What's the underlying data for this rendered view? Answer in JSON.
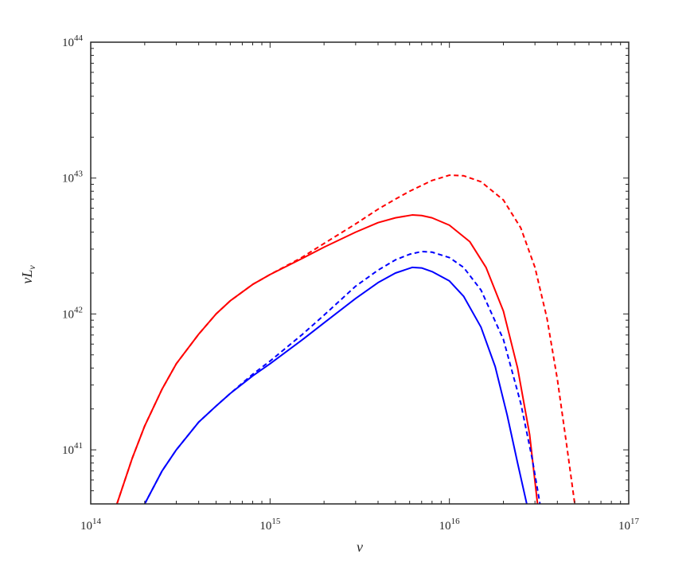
{
  "chart_data": {
    "type": "line",
    "xlabel": "ν",
    "ylabel": {
      "main": "νL",
      "sub": "ν"
    },
    "xscale": "log",
    "yscale": "log",
    "xlim": [
      100000000000000.0,
      1e+17
    ],
    "ylim": [
      4e+40,
      1e+44
    ],
    "grid": false,
    "legend": "none",
    "x_ticks": [
      {
        "base": "10",
        "exp": "14"
      },
      {
        "base": "10",
        "exp": "15"
      },
      {
        "base": "10",
        "exp": "16"
      },
      {
        "base": "10",
        "exp": "17"
      }
    ],
    "y_ticks": [
      {
        "base": "10",
        "exp": "41"
      },
      {
        "base": "10",
        "exp": "42"
      },
      {
        "base": "10",
        "exp": "43"
      },
      {
        "base": "10",
        "exp": "44"
      }
    ],
    "series": [
      {
        "color": "#ff0000",
        "style": "solid",
        "points": [
          [
            140000000000000.0,
            4e+40
          ],
          [
            170000000000000.0,
            8.6e+40
          ],
          [
            200000000000000.0,
            1.5e+41
          ],
          [
            250000000000000.0,
            2.8e+41
          ],
          [
            300000000000000.0,
            4.3e+41
          ],
          [
            400000000000000.0,
            7.1e+41
          ],
          [
            500000000000000.0,
            1e+42
          ],
          [
            600000000000000.0,
            1.25e+42
          ],
          [
            800000000000000.0,
            1.65e+42
          ],
          [
            1000000000000000.0,
            1.95e+42
          ],
          [
            1500000000000000.0,
            2.55e+42
          ],
          [
            2000000000000000.0,
            3.1e+42
          ],
          [
            3000000000000000.0,
            4e+42
          ],
          [
            4000000000000000.0,
            4.7e+42
          ],
          [
            5000000000000000.0,
            5.1e+42
          ],
          [
            6200000000000000.0,
            5.35e+42
          ],
          [
            7000000000000000.0,
            5.3e+42
          ],
          [
            8000000000000000.0,
            5.1e+42
          ],
          [
            1e+16,
            4.5e+42
          ],
          [
            1.3e+16,
            3.4e+42
          ],
          [
            1.6e+16,
            2.2e+42
          ],
          [
            2e+16,
            1.05e+42
          ],
          [
            2.4e+16,
            4e+41
          ],
          [
            2.8e+16,
            1.3e+41
          ],
          [
            3.1e+16,
            4e+40
          ]
        ]
      },
      {
        "color": "#ff0000",
        "style": "dashed",
        "points": [
          [
            140000000000000.0,
            4e+40
          ],
          [
            170000000000000.0,
            8.6e+40
          ],
          [
            200000000000000.0,
            1.5e+41
          ],
          [
            250000000000000.0,
            2.8e+41
          ],
          [
            300000000000000.0,
            4.3e+41
          ],
          [
            400000000000000.0,
            7.1e+41
          ],
          [
            500000000000000.0,
            1e+42
          ],
          [
            600000000000000.0,
            1.25e+42
          ],
          [
            800000000000000.0,
            1.65e+42
          ],
          [
            1000000000000000.0,
            1.95e+42
          ],
          [
            1500000000000000.0,
            2.6e+42
          ],
          [
            2000000000000000.0,
            3.3e+42
          ],
          [
            3000000000000000.0,
            4.6e+42
          ],
          [
            4000000000000000.0,
            5.9e+42
          ],
          [
            5000000000000000.0,
            7e+42
          ],
          [
            6000000000000000.0,
            8e+42
          ],
          [
            8000000000000000.0,
            9.6e+42
          ],
          [
            1e+16,
            1.05e+43
          ],
          [
            1.2e+16,
            1.04e+43
          ],
          [
            1.5e+16,
            9.4e+42
          ],
          [
            2e+16,
            6.9e+42
          ],
          [
            2.5e+16,
            4.3e+42
          ],
          [
            3e+16,
            2.2e+42
          ],
          [
            3.5e+16,
            9.3e+41
          ],
          [
            4e+16,
            3.3e+41
          ],
          [
            4.5e+16,
            1.1e+41
          ],
          [
            5e+16,
            4e+40
          ]
        ]
      },
      {
        "color": "#0000ff",
        "style": "solid",
        "points": [
          [
            200000000000000.0,
            4e+40
          ],
          [
            250000000000000.0,
            7e+40
          ],
          [
            300000000000000.0,
            1e+41
          ],
          [
            400000000000000.0,
            1.6e+41
          ],
          [
            500000000000000.0,
            2.1e+41
          ],
          [
            600000000000000.0,
            2.6e+41
          ],
          [
            800000000000000.0,
            3.5e+41
          ],
          [
            1000000000000000.0,
            4.3e+41
          ],
          [
            1500000000000000.0,
            6.4e+41
          ],
          [
            2000000000000000.0,
            8.6e+41
          ],
          [
            3000000000000000.0,
            1.3e+42
          ],
          [
            4000000000000000.0,
            1.7e+42
          ],
          [
            5000000000000000.0,
            2e+42
          ],
          [
            6200000000000000.0,
            2.2e+42
          ],
          [
            7000000000000000.0,
            2.18e+42
          ],
          [
            8000000000000000.0,
            2.05e+42
          ],
          [
            1e+16,
            1.75e+42
          ],
          [
            1.2e+16,
            1.35e+42
          ],
          [
            1.5e+16,
            8e+41
          ],
          [
            1.8e+16,
            4.1e+41
          ],
          [
            2.1e+16,
            1.8e+41
          ],
          [
            2.4e+16,
            8e+40
          ],
          [
            2.7e+16,
            4e+40
          ]
        ]
      },
      {
        "color": "#0000ff",
        "style": "dashed",
        "points": [
          [
            200000000000000.0,
            4e+40
          ],
          [
            250000000000000.0,
            7e+40
          ],
          [
            300000000000000.0,
            1e+41
          ],
          [
            400000000000000.0,
            1.6e+41
          ],
          [
            500000000000000.0,
            2.1e+41
          ],
          [
            600000000000000.0,
            2.6e+41
          ],
          [
            800000000000000.0,
            3.6e+41
          ],
          [
            1000000000000000.0,
            4.5e+41
          ],
          [
            1500000000000000.0,
            7e+41
          ],
          [
            2000000000000000.0,
            9.8e+41
          ],
          [
            3000000000000000.0,
            1.6e+42
          ],
          [
            4000000000000000.0,
            2.1e+42
          ],
          [
            5000000000000000.0,
            2.5e+42
          ],
          [
            6000000000000000.0,
            2.75e+42
          ],
          [
            7000000000000000.0,
            2.88e+42
          ],
          [
            8000000000000000.0,
            2.85e+42
          ],
          [
            1e+16,
            2.6e+42
          ],
          [
            1.2e+16,
            2.2e+42
          ],
          [
            1.5e+16,
            1.5e+42
          ],
          [
            2e+16,
            6.5e+41
          ],
          [
            2.5e+16,
            2.2e+41
          ],
          [
            2.9e+16,
            8.5e+40
          ],
          [
            3.2e+16,
            4e+40
          ]
        ]
      }
    ]
  }
}
